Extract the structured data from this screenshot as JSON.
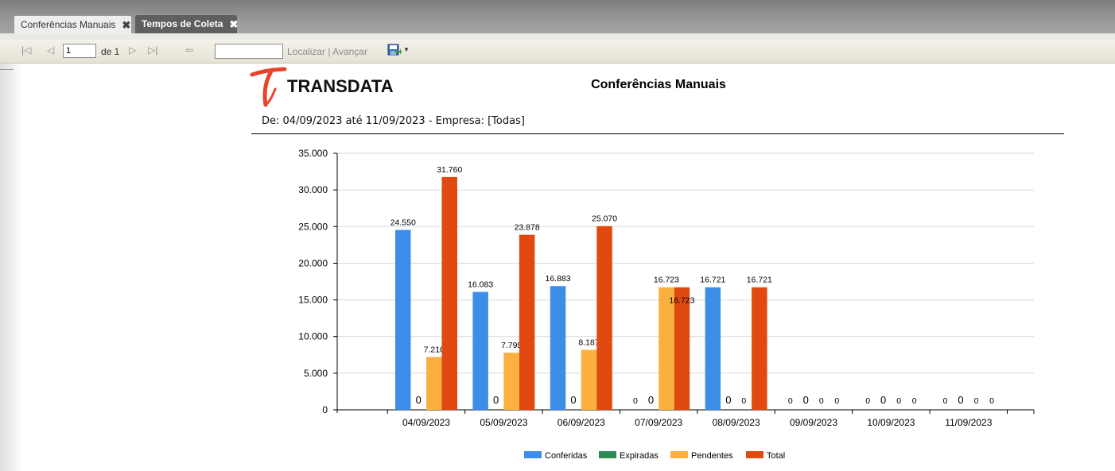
{
  "tabs": [
    {
      "label": "Conferências Manuais",
      "active": true
    },
    {
      "label": "Tempos de Coleta",
      "active": false
    }
  ],
  "toolbar": {
    "first_icon": "first-page-icon",
    "prev_icon": "prev-page-icon",
    "page_value": "1",
    "of_label": "de 1",
    "next_icon": "next-page-icon",
    "last_icon": "last-page-icon",
    "back_icon": "back-icon",
    "find_value": "",
    "find_label": "Localizar",
    "separator": "|",
    "next_label": "Avançar",
    "export_icon": "save-export-icon"
  },
  "report": {
    "logo_text": "TRANSDATA",
    "title": "Conferências Manuais",
    "filter": "De: 04/09/2023 até 11/09/2023 - Empresa: [Todas]"
  },
  "chart_data": {
    "type": "bar",
    "categories": [
      "04/09/2023",
      "05/09/2023",
      "06/09/2023",
      "07/09/2023",
      "08/09/2023",
      "09/09/2023",
      "10/09/2023",
      "11/09/2023"
    ],
    "series": [
      {
        "name": "Conferidas",
        "color": "#3d8ee9",
        "values": [
          24550,
          16083,
          16883,
          0,
          16721,
          0,
          0,
          0
        ],
        "labels": [
          "24.550",
          "16.083",
          "16.883",
          "0",
          "16.721",
          "0",
          "0",
          "0"
        ]
      },
      {
        "name": "Expiradas",
        "color": "#2e8b57",
        "values": [
          0,
          0,
          0,
          0,
          0,
          0,
          0,
          0
        ],
        "labels": [
          "0",
          "0",
          "0",
          "0",
          "0",
          "0",
          "0",
          "0"
        ]
      },
      {
        "name": "Pendentes",
        "color": "#fbb040",
        "values": [
          7210,
          7795,
          8187,
          16723,
          0,
          0,
          0,
          0
        ],
        "labels": [
          "7.210",
          "7.795",
          "8.187",
          "16.723",
          "0",
          "0",
          "0",
          "0"
        ]
      },
      {
        "name": "Total",
        "color": "#e04a10",
        "values": [
          31760,
          23878,
          25070,
          16723,
          16721,
          0,
          0,
          0
        ],
        "labels": [
          "31.760",
          "23.878",
          "25.070",
          "16.723",
          "16.721",
          "0",
          "0",
          "0"
        ]
      }
    ],
    "ylim": [
      0,
      35000
    ],
    "yticks": [
      0,
      5000,
      10000,
      15000,
      20000,
      25000,
      30000,
      35000
    ],
    "ytick_labels": [
      "0",
      "5.000",
      "10.000",
      "15.000",
      "20.000",
      "25.000",
      "30.000",
      "35.000"
    ],
    "grid": true,
    "legend_position": "bottom-center"
  }
}
